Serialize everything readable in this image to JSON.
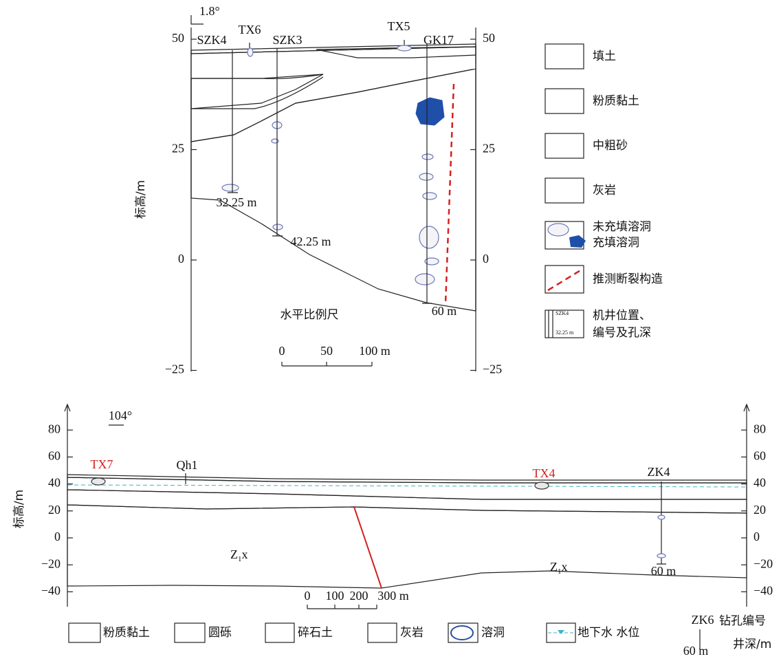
{
  "top": {
    "angle": "1.8°",
    "y_label": "标高/m",
    "left_ticks": [
      50,
      25,
      0,
      {
        "value": -25,
        "label": "−25"
      }
    ],
    "right_ticks": [
      50,
      25,
      0,
      {
        "value": -25,
        "label": "−25"
      }
    ],
    "boreholes": [
      "SZK4",
      "TX6",
      "SZK3",
      "TX5",
      "GK17"
    ],
    "depths": [
      "32.25 m",
      "42.25 m",
      "60 m"
    ],
    "scale": {
      "title": "水平比例尺",
      "ticks": [
        "0",
        "50",
        "100 m"
      ]
    }
  },
  "legend": {
    "items": [
      "填土",
      "粉质黏土",
      "中粗砂",
      "灰岩",
      "未充填溶洞",
      "充填溶洞",
      "推测断裂构造",
      "机井位置、",
      "编号及孔深"
    ],
    "well_sample": {
      "name": "SZK4",
      "depth": "32.25 m"
    }
  },
  "bottom": {
    "angle": "104°",
    "y_label": "标高/m",
    "left_ticks": [
      80,
      60,
      40,
      20,
      0,
      {
        "value": -20,
        "label": "−20"
      },
      {
        "value": -40,
        "label": "−40"
      }
    ],
    "right_ticks": [
      80,
      60,
      40,
      20,
      0,
      {
        "value": -20,
        "label": "−20"
      },
      {
        "value": -40,
        "label": "−40"
      }
    ],
    "labels": [
      "TX7",
      "Qh1",
      "TX4",
      "ZK4",
      "60 m"
    ],
    "formation": {
      "base": "Z",
      "sub": "1",
      "tail": "x"
    },
    "scale": [
      "0",
      "100",
      "200",
      "300 m"
    ],
    "legend": [
      "粉质黏土",
      "圆砾",
      "碎石土",
      "灰岩",
      "溶洞",
      "地下水 水位"
    ],
    "legend_well": {
      "name": "ZK6",
      "depth": "60 m",
      "name_label": "钻孔编号",
      "depth_label": "井深/m"
    }
  }
}
